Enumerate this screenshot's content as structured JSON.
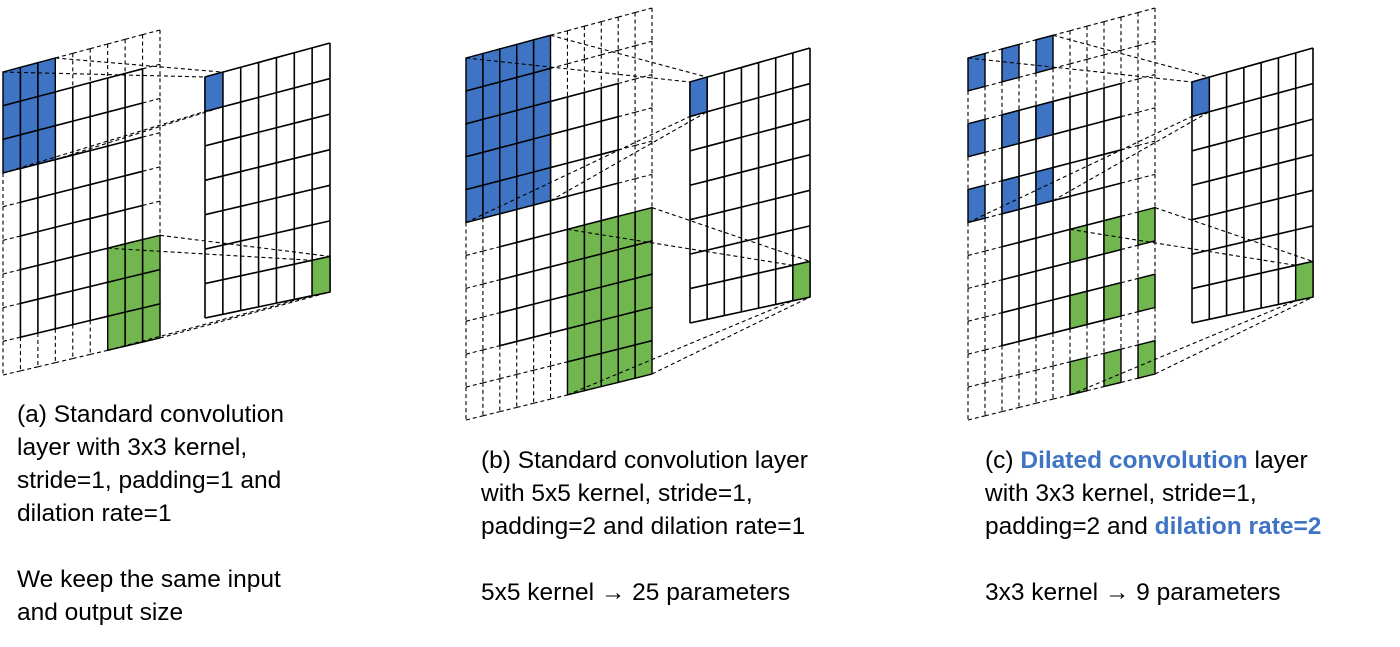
{
  "colors": {
    "kernel_blue": "#3F74C5",
    "kernel_green": "#72B650",
    "grid_line": "#000000",
    "highlight_text": "#3F74C5"
  },
  "panels": [
    {
      "id": "a",
      "input": {
        "padding": 1,
        "blue_kernel_cells": "3x3 block, top-left",
        "green_kernel_cells": "3x3 block, lower-right"
      },
      "output": {
        "grid": "7x7"
      },
      "caption": {
        "line1": "(a) Standard convolution",
        "line2": "layer with 3x3 kernel,",
        "line3": "stride=1, padding=1 and",
        "line4": "dilation rate=1",
        "line5": "We keep the same input",
        "line6": "and output size"
      }
    },
    {
      "id": "b",
      "input": {
        "padding": 2,
        "blue_kernel_cells": "5x5 block, top-left",
        "green_kernel_cells": "5x5 block, lower-right"
      },
      "output": {
        "grid": "7x7"
      },
      "caption": {
        "line1": "(b) Standard convolution layer",
        "line2": "with 5x5 kernel, stride=1,",
        "line3": "padding=2 and dilation rate=1",
        "line4": "5x5 kernel → 25 parameters"
      }
    },
    {
      "id": "c",
      "input": {
        "padding": 2,
        "blue_kernel_cells": "3x3 dilated (rate 2), top-left",
        "green_kernel_cells": "3x3 dilated (rate 2), lower-right"
      },
      "output": {
        "grid": "7x7"
      },
      "caption": {
        "prefix": "(c) ",
        "highlight1": "Dilated convolution",
        "suffix1": " layer",
        "line2": "with 3x3 kernel, stride=1,",
        "line3_prefix": "padding=2 and ",
        "highlight2": "dilation rate=2",
        "line4": "3x3 kernel → 9 parameters"
      }
    }
  ]
}
